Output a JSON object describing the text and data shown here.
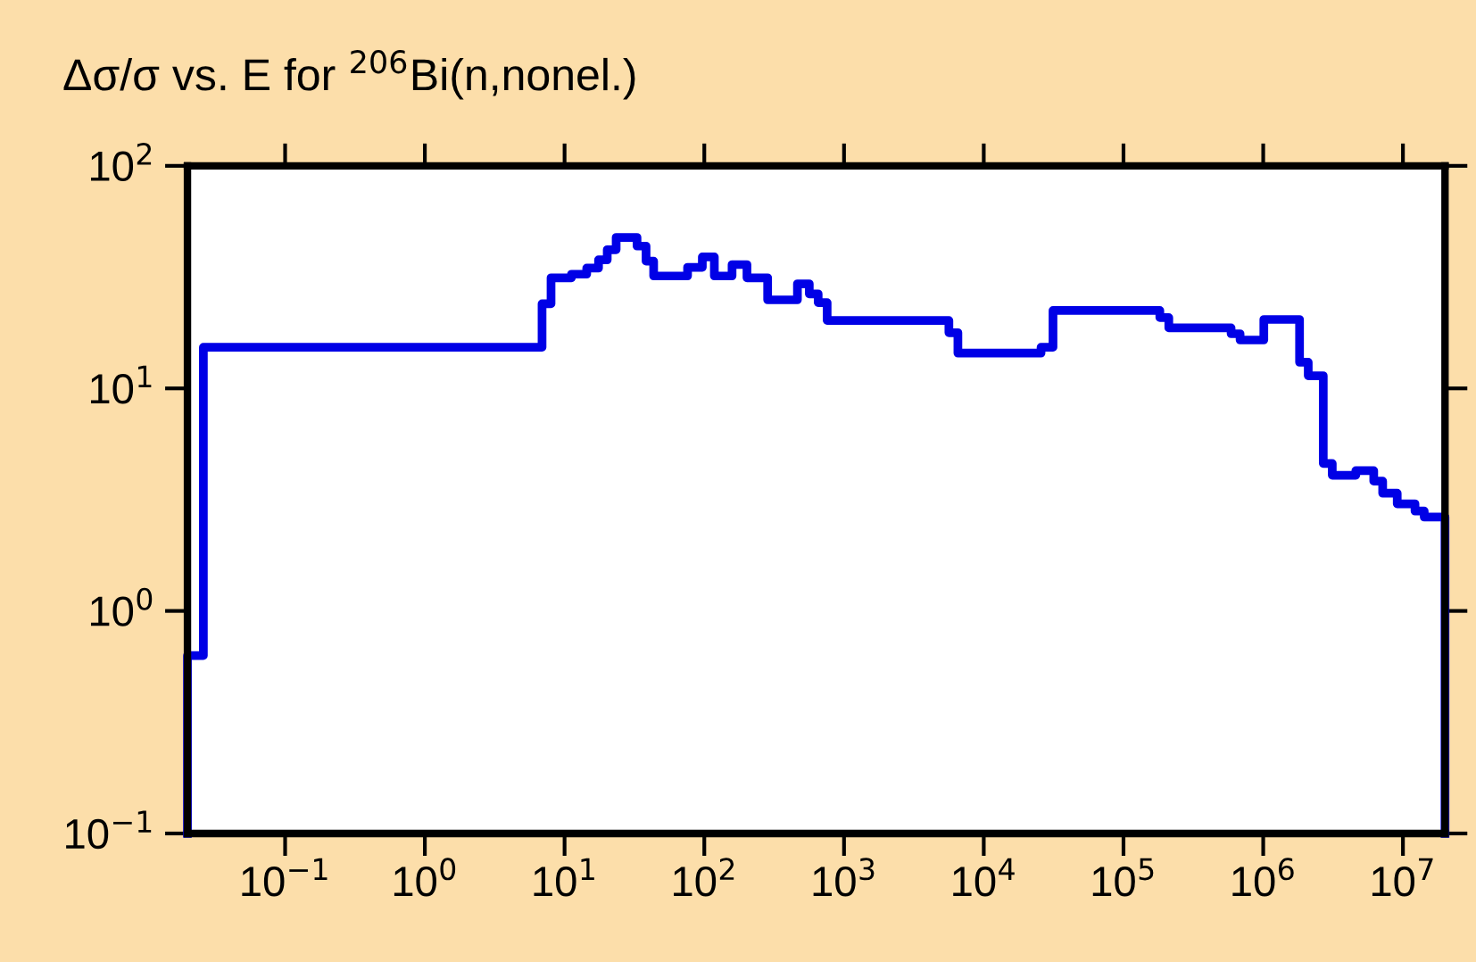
{
  "chart_data": {
    "type": "step",
    "title": "Δσ/σ vs. E for $^{206}$Bi(n,nonel.)",
    "x": [
      0.02,
      0.02,
      0.026,
      6.9,
      8.0,
      11.2,
      14.4,
      17.5,
      20.2,
      23.4,
      33,
      38.3,
      43.4,
      75.9,
      96.8,
      118,
      158,
      202,
      284,
      464,
      564,
      653,
      757,
      5630,
      6530,
      25700,
      31300,
      182000,
      211000,
      589000,
      683000,
      1010000,
      1820000,
      2100000,
      2690000,
      3120000,
      4600000,
      6180000,
      7160000,
      9100000,
      12200000,
      14200000,
      20000000
    ],
    "series": [
      {
        "color": "#0000e6",
        "values": [
          0.1,
          0.63,
          15.3,
          24,
          31.4,
          32.6,
          34.7,
          37.8,
          42,
          47.7,
          43.6,
          37.3,
          32,
          35,
          39,
          32,
          36,
          31.4,
          25,
          29.5,
          26.6,
          24.3,
          20.2,
          17.8,
          14.4,
          15.3,
          22.4,
          20.8,
          18.7,
          17.6,
          16.5,
          20.4,
          13.1,
          11.4,
          4.6,
          4.07,
          4.27,
          3.83,
          3.38,
          3.03,
          2.81,
          2.64,
          0.1
        ]
      }
    ],
    "log": "xy",
    "xlim": [
      0.02,
      20000000
    ],
    "ylim": [
      0.1,
      100
    ],
    "xticks": [
      {
        "value": 0.1,
        "label": "10$^{−1}$"
      },
      {
        "value": 1,
        "label": "10$^{0}$"
      },
      {
        "value": 10,
        "label": "10$^{1}$"
      },
      {
        "value": 100,
        "label": "10$^{2}$"
      },
      {
        "value": 1000,
        "label": "10$^{3}$"
      },
      {
        "value": 10000,
        "label": "10$^{4}$"
      },
      {
        "value": 100000,
        "label": "10$^{5}$"
      },
      {
        "value": 1000000,
        "label": "10$^{6}$"
      },
      {
        "value": 10000000,
        "label": "10$^{7}$"
      }
    ],
    "yticks": [
      {
        "value": 0.1,
        "label": "10$^{−1}$"
      },
      {
        "value": 1,
        "label": "10$^{0}$"
      },
      {
        "value": 10,
        "label": "10$^{1}$"
      },
      {
        "value": 100,
        "label": "10$^{2}$"
      }
    ],
    "grid": false,
    "legend": false
  }
}
